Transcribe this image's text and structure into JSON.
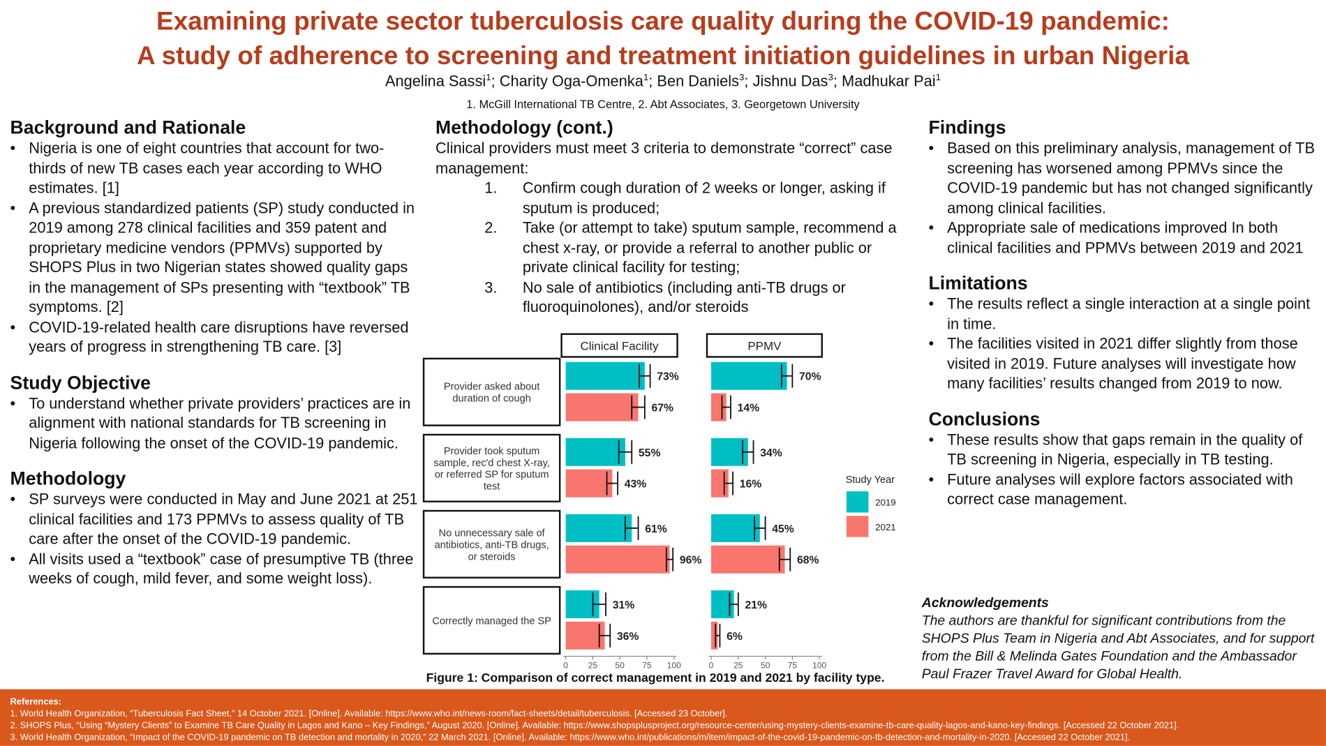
{
  "header": {
    "title_lines": [
      "Examining private sector tuberculosis care quality during the COVID-19 pandemic:",
      "A study of adherence to screening and treatment initiation guidelines in urban Nigeria"
    ],
    "authors": [
      {
        "name": "Angelina Sassi",
        "affil": "1"
      },
      {
        "name": "Charity Oga-Omenka",
        "affil": "1"
      },
      {
        "name": "Ben Daniels",
        "affil": "3"
      },
      {
        "name": "Jishnu Das",
        "affil": "3"
      },
      {
        "name": "Madhukar Pai",
        "affil": "1"
      }
    ],
    "affiliations": "1. McGill International TB Centre, 2. Abt Associates, 3. Georgetown University"
  },
  "background": {
    "heading": "Background and Rationale",
    "bullets": [
      "Nigeria is one of eight countries that account for two-thirds of new TB cases each year according to WHO estimates. [1]",
      "A previous standardized patients (SP) study conducted in 2019 among 278 clinical facilities and 359 patent and proprietary medicine vendors (PPMVs) supported by SHOPS Plus in two Nigerian states showed quality gaps in the management of SPs presenting with “textbook” TB symptoms. [2]",
      "COVID-19-related health care disruptions have reversed years of progress in strengthening TB care. [3]"
    ]
  },
  "objective": {
    "heading": "Study Objective",
    "bullets": [
      "To understand whether private providers’ practices are in alignment with national standards for TB screening in Nigeria following the onset of the COVID-19 pandemic."
    ]
  },
  "methodology": {
    "heading": "Methodology",
    "bullets": [
      "SP surveys were conducted in May and June 2021 at 251 clinical facilities and 173 PPMVs to assess quality of TB care after the onset of the COVID-19 pandemic.",
      "All visits used a “textbook” case of presumptive TB (three weeks of cough, mild fever, and some weight loss)."
    ]
  },
  "methodology_cont": {
    "heading": "Methodology (cont.)",
    "intro": "Clinical providers must meet 3 criteria to demonstrate “correct” case management:",
    "items": [
      {
        "number": "1.",
        "text": "Confirm cough duration of 2 weeks or longer, asking if sputum is produced;"
      },
      {
        "number": "2.",
        "text": "Take (or attempt to take) sputum sample, recommend a chest x-ray, or provide a referral to another public or private clinical facility for testing;"
      },
      {
        "number": "3.",
        "text": "No sale of antibiotics (including anti-TB drugs or fluoroquinolones), and/or steroids"
      }
    ]
  },
  "figure_caption": "Figure 1: Comparison of correct management in 2019 and 2021 by facility type.",
  "chart_data": [
    {
      "type": "bar",
      "title": "Clinical Facility",
      "legend_title": "Study Year",
      "categories": [
        "Provider asked about duration of cough",
        "Provider took sputum sample, rec'd chest X-ray, or referred SP for sputum test",
        "No unnecessary sale of antibiotics, anti-TB drugs, or steroids",
        "Correctly managed the SP"
      ],
      "series": [
        {
          "name": "2019",
          "color": "#00bfc4",
          "values": [
            73,
            55,
            61,
            31
          ],
          "errors": [
            5,
            6,
            6,
            6
          ],
          "value_labels": [
            "73%",
            "55%",
            "61%",
            "31%"
          ]
        },
        {
          "name": "2021",
          "color": "#f8766d",
          "values": [
            67,
            43,
            96,
            36
          ],
          "errors": [
            6,
            5,
            3,
            5
          ],
          "value_labels": [
            "67%",
            "43%",
            "96%",
            "36%"
          ]
        }
      ],
      "xlim": [
        0,
        100
      ],
      "xticks": [
        0,
        25,
        50,
        75,
        100
      ]
    },
    {
      "type": "bar",
      "title": "PPMV",
      "series": [
        {
          "color": "#00bfc4",
          "values": [
            70,
            34,
            45,
            21
          ],
          "errors": [
            5,
            5,
            5,
            4
          ],
          "value_labels": [
            "70%",
            "34%",
            "45%",
            "21%"
          ]
        },
        {
          "color": "#f8766d",
          "values": [
            14,
            16,
            68,
            6
          ],
          "errors": [
            4,
            4,
            5,
            2
          ],
          "value_labels": [
            "14%",
            "16%",
            "68%",
            "6%"
          ]
        }
      ],
      "xlim": [
        0,
        100
      ],
      "xticks": [
        0,
        25,
        50,
        75,
        100
      ]
    }
  ],
  "findings": {
    "heading": "Findings",
    "bullets": [
      "Based on this preliminary analysis, management of TB screening has worsened among PPMVs since the COVID-19 pandemic but has not changed significantly among clinical facilities.",
      "Appropriate sale of medications improved In both clinical facilities and PPMVs between 2019 and 2021"
    ]
  },
  "limitations": {
    "heading": "Limitations",
    "bullets": [
      "The results reflect a single interaction at a single point in time.",
      "The facilities visited in 2021 differ slightly from those visited in 2019. Future analyses will investigate how many facilities’ results changed from 2019 to now."
    ]
  },
  "conclusions": {
    "heading": "Conclusions",
    "bullets": [
      "These results show that gaps remain in the quality of TB screening in Nigeria, especially in TB testing.",
      "Future analyses will explore factors associated with correct case management."
    ]
  },
  "acknowledgements": {
    "heading": "Acknowledgements",
    "text": "The authors are thankful for significant contributions from the SHOPS Plus Team in Nigeria and Abt Associates, and for support from the Bill & Melinda Gates Foundation and the Ambassador Paul Frazer Travel Award for Global Health."
  },
  "references": {
    "heading": "References:",
    "items": [
      "1. World Health Organization, “Tuberculosis Fact Sheet,” 14 October 2021. [Online]. Available: https://www.who.int/news-room/fact-sheets/detail/tuberculosis. [Accessed 23 October].",
      "2. SHOPS Plus, “Using “Mystery Clients” to Examine TB Care Quality in Lagos and Kano – Key Findings,” August 2020. [Online]. Available: https://www.shopsplusproject.org/resource-center/using-mystery-clients-examine-tb-care-quality-lagos-and-kano-key-findings. [Accessed 22 October 2021].",
      "3. World Health Organization, “Impact of the COVID-19 pandemic on TB detection and mortality in 2020,” 22 March 2021. [Online]. Available: https://www.who.int/publications/m/item/impact-of-the-covid-19-pandemic-on-tb-detection-and-mortality-in-2020. [Accessed 22 October 2021]."
    ]
  }
}
